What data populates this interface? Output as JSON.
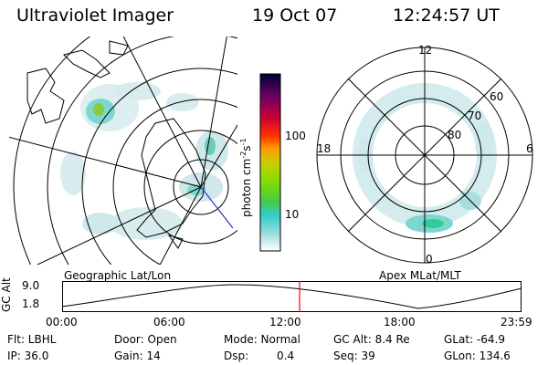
{
  "header": {
    "title": "Ultraviolet Imager",
    "date": "19 Oct 07",
    "time": "12:24:57 UT"
  },
  "geo_panel": {
    "label": "Geographic Lat/Lon"
  },
  "apex_panel": {
    "label": "Apex MLat/MLT",
    "mlt_labels": [
      "12",
      "18",
      "6",
      "0"
    ],
    "lat_labels": [
      "60",
      "70",
      "80"
    ]
  },
  "colorbar": {
    "unit": "photon cm",
    "unit_sup1": "-2",
    "unit_s": "s",
    "unit_sup2": "-1",
    "ticks": [
      "100",
      "10"
    ],
    "colors": [
      "#000033",
      "#330055",
      "#660066",
      "#990033",
      "#cc0033",
      "#ff3300",
      "#ff9900",
      "#cccc00",
      "#88dd00",
      "#44cc44",
      "#33cccc",
      "#88dddd",
      "#cceeee",
      "#ffffff"
    ]
  },
  "altitude_strip": {
    "ylabel": "GC Alt",
    "y_ticks": [
      "9.0",
      "1.8"
    ],
    "x_ticks": [
      "00:00",
      "06:00",
      "12:00",
      "18:00",
      "23:59"
    ],
    "current_time_marker": "12:24:57"
  },
  "info": {
    "filter": "Flt: LBHL",
    "door": "Door: Open",
    "mode": "Mode: Normal",
    "gc_alt": "GC Alt: 8.4 Re",
    "glat": "GLat: -64.9",
    "ip": "IP: 36.0",
    "gain": "Gain: 14",
    "dsp_label": "Dsp:",
    "dsp_value": "0.4",
    "seq": "Seq: 39",
    "glon": "GLon: 134.6"
  },
  "colors": {
    "aurora_light": "#cfe8ea",
    "aurora_mid": "#7fd6d0",
    "aurora_strong": "#33cc99",
    "aurora_peak": "#66cc33",
    "marker": "#ff0000"
  }
}
